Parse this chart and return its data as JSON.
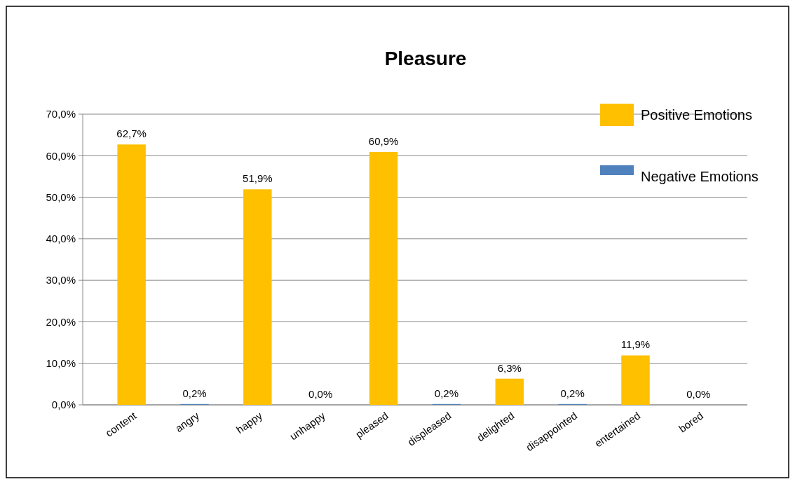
{
  "chart_data": {
    "type": "bar",
    "title": "Pleasure",
    "categories": [
      "content",
      "angry",
      "happy",
      "unhappy",
      "pleased",
      "displeased",
      "delighted",
      "disappointed",
      "entertained",
      "bored"
    ],
    "series": [
      {
        "name": "Positive Emotions",
        "color": "#ffc000",
        "values": [
          62.7,
          null,
          51.9,
          null,
          60.9,
          null,
          6.3,
          null,
          11.9,
          null
        ],
        "value_labels": [
          "62,7%",
          null,
          "51,9%",
          null,
          "60,9%",
          null,
          "6,3%",
          null,
          "11,9%",
          null
        ]
      },
      {
        "name": "Negative Emotions",
        "color": "#4f81bd",
        "values": [
          null,
          0.2,
          null,
          0.0,
          null,
          0.2,
          null,
          0.2,
          null,
          0.0
        ],
        "value_labels": [
          null,
          "0,2%",
          null,
          "0,0%",
          null,
          "0,2%",
          null,
          "0,2%",
          null,
          "0,0%"
        ]
      }
    ],
    "ylim": [
      0,
      70
    ],
    "yticks": [
      {
        "value": 0,
        "label": "0,0%"
      },
      {
        "value": 10,
        "label": "10,0%"
      },
      {
        "value": 20,
        "label": "20,0%"
      },
      {
        "value": 30,
        "label": "30,0%"
      },
      {
        "value": 40,
        "label": "40,0%"
      },
      {
        "value": 50,
        "label": "50,0%"
      },
      {
        "value": 60,
        "label": "60,0%"
      },
      {
        "value": 70,
        "label": "70,0%"
      }
    ],
    "grid": "y",
    "legend": "top right"
  }
}
